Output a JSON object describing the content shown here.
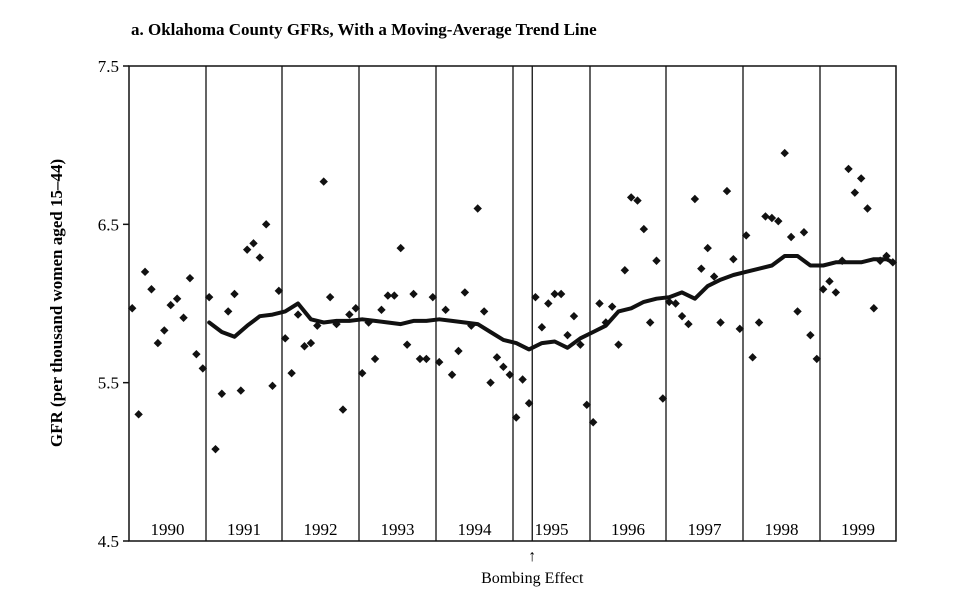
{
  "chart_data": {
    "type": "scatter",
    "title": "a. Oklahoma County GFRs, With a Moving-Average Trend Line",
    "ylabel": "GFR (per thousand women aged 15–44)",
    "xlabel": "",
    "ylim": [
      4.5,
      7.5
    ],
    "yticks": [
      "4.5",
      "5.5",
      "6.5",
      "7.5"
    ],
    "ytick_values": [
      4.5,
      5.5,
      6.5,
      7.5
    ],
    "grid": false,
    "years": [
      "1990",
      "1991",
      "1992",
      "1993",
      "1994",
      "1995",
      "1996",
      "1997",
      "1998",
      "1999"
    ],
    "annotation": {
      "text": "Bombing Effect",
      "arrow": "↑",
      "x": 63.5
    },
    "x_unit": "months since January 1990 (January 1990 = 1)",
    "series": [
      {
        "kind": "points",
        "x": [
          1,
          2,
          3,
          4,
          5,
          6,
          7,
          8,
          9,
          10,
          11,
          12,
          13,
          14,
          15,
          16,
          17,
          18,
          19,
          20,
          21,
          22,
          23,
          24,
          25,
          26,
          27,
          28,
          29,
          30,
          31,
          32,
          33,
          34,
          35,
          36,
          37,
          38,
          39,
          40,
          41,
          42,
          43,
          44,
          45,
          46,
          47,
          48,
          49,
          50,
          51,
          52,
          53,
          54,
          55,
          56,
          57,
          58,
          59,
          60,
          61,
          62,
          63,
          64,
          65,
          66,
          67,
          68,
          69,
          70,
          71,
          72,
          73,
          74,
          75,
          76,
          77,
          78,
          79,
          80,
          81,
          82,
          83,
          84,
          85,
          86,
          87,
          88,
          89,
          90,
          91,
          92,
          93,
          94,
          95,
          96,
          97,
          98,
          99,
          100,
          101,
          102,
          103,
          104,
          105,
          106,
          107,
          108,
          109,
          110,
          111,
          112,
          113,
          114,
          115,
          116,
          117,
          118,
          119,
          120
        ],
        "values": [
          5.97,
          5.3,
          6.2,
          6.09,
          5.75,
          5.83,
          5.99,
          6.03,
          5.91,
          6.16,
          5.68,
          5.59,
          6.04,
          5.08,
          5.43,
          5.95,
          6.06,
          5.45,
          6.34,
          6.38,
          6.29,
          6.5,
          5.48,
          6.08,
          5.78,
          5.56,
          5.93,
          5.73,
          5.75,
          5.86,
          6.77,
          6.04,
          5.87,
          5.33,
          5.93,
          5.97,
          5.56,
          5.88,
          5.65,
          5.96,
          6.05,
          6.05,
          6.35,
          5.74,
          6.06,
          5.65,
          5.65,
          6.04,
          5.63,
          5.96,
          5.55,
          5.7,
          6.07,
          5.86,
          6.6,
          5.95,
          5.5,
          5.66,
          5.6,
          5.55,
          5.28,
          5.52,
          5.37,
          6.04,
          5.85,
          6.0,
          6.06,
          6.06,
          5.8,
          5.92,
          5.74,
          5.36,
          5.25,
          6.0,
          5.88,
          5.98,
          5.74,
          6.21,
          6.67,
          6.65,
          6.47,
          5.88,
          6.27,
          5.4,
          6.01,
          6.0,
          5.92,
          5.87,
          6.66,
          6.22,
          6.35,
          6.17,
          5.88,
          6.71,
          6.28,
          5.84,
          6.43,
          5.66,
          5.88,
          6.55,
          6.54,
          6.52,
          6.95,
          6.42,
          5.95,
          6.45,
          5.8,
          5.65,
          6.09,
          6.14,
          6.07,
          6.27,
          6.85,
          6.7,
          6.79,
          6.6,
          5.97,
          6.27,
          6.3,
          6.26
        ]
      },
      {
        "kind": "trend-line",
        "x": [
          13,
          15,
          17,
          19,
          21,
          23,
          25,
          27,
          29,
          31,
          33,
          35,
          37,
          39,
          41,
          43,
          45,
          47,
          49,
          51,
          53,
          55,
          57,
          59,
          61,
          63,
          65,
          67,
          69,
          71,
          73,
          75,
          77,
          79,
          81,
          83,
          85,
          87,
          89,
          91,
          93,
          95,
          97,
          99,
          101,
          103,
          105,
          107,
          109,
          111,
          113,
          115,
          117,
          119,
          120
        ],
        "values": [
          5.88,
          5.82,
          5.79,
          5.86,
          5.92,
          5.93,
          5.95,
          6.0,
          5.9,
          5.88,
          5.89,
          5.89,
          5.9,
          5.89,
          5.88,
          5.87,
          5.89,
          5.89,
          5.9,
          5.89,
          5.88,
          5.87,
          5.82,
          5.77,
          5.75,
          5.71,
          5.75,
          5.76,
          5.72,
          5.78,
          5.82,
          5.86,
          5.95,
          5.97,
          6.01,
          6.03,
          6.04,
          6.07,
          6.03,
          6.11,
          6.15,
          6.18,
          6.2,
          6.22,
          6.24,
          6.3,
          6.3,
          6.24,
          6.24,
          6.26,
          6.26,
          6.26,
          6.28,
          6.28,
          6.26
        ]
      }
    ]
  }
}
